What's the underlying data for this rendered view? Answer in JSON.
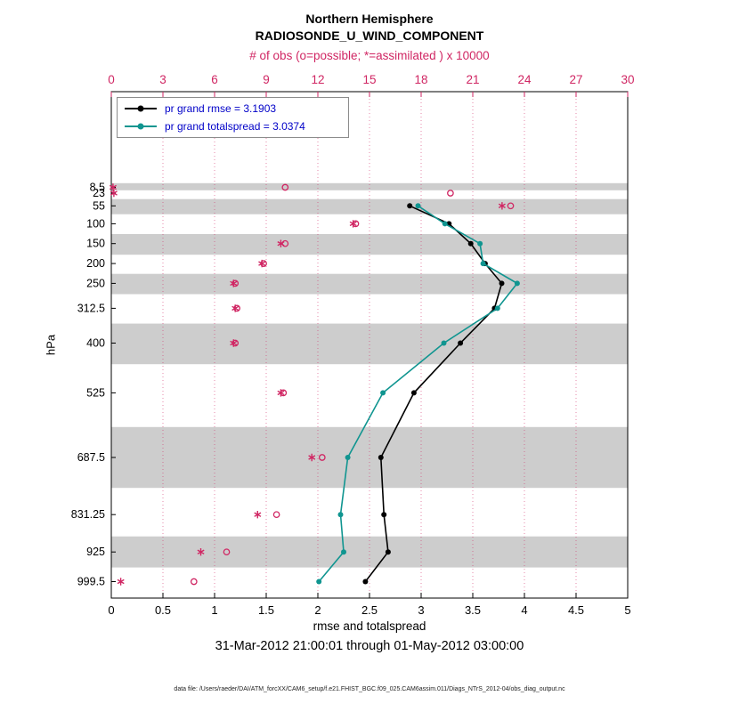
{
  "title": {
    "line1": "Northern Hemisphere",
    "line2": "RADIOSONDE_U_WIND_COMPONENT"
  },
  "top_axis": {
    "label": "# of obs (o=possible; *=assimilated ) x 10000"
  },
  "legend": {
    "text_color": "#0000c8",
    "items": [
      {
        "label": "pr grand rmse = 3.1903",
        "color": "#000000"
      },
      {
        "label": "pr grand totalspread = 3.0374",
        "color": "#109590"
      }
    ]
  },
  "y_axis": {
    "label": "hPa"
  },
  "x_axis": {
    "label": "rmse and totalspread"
  },
  "footer": {
    "date_range": "31-Mar-2012 21:00:01 through 01-May-2012 03:00:00",
    "data_file": "data file: /Users/raeder/DAI/ATM_forcXX/CAM6_setup/f.e21.FHIST_BGC.f09_025.CAM6assim.011/Diags_NTrS_2012-04/obs_diag_output.nc"
  },
  "chart_data": {
    "type": "line",
    "title": "Northern Hemisphere RADIOSONDE_U_WIND_COMPONENT",
    "xlabel": "rmse and totalspread",
    "x2label": "# of obs (o=possible; *=assimilated ) x 10000",
    "ylabel": "hPa",
    "xlim": [
      0,
      5
    ],
    "x2lim": [
      0,
      30
    ],
    "x_ticks": [
      0,
      0.5,
      1,
      1.5,
      2,
      2.5,
      3,
      3.5,
      4,
      4.5,
      5
    ],
    "x2_ticks": [
      0,
      3,
      6,
      9,
      12,
      15,
      18,
      21,
      24,
      27,
      30
    ],
    "y_levels_hpa": [
      8.5,
      23,
      55,
      100,
      150,
      200,
      250,
      312.5,
      400,
      525,
      687.5,
      831.25,
      925,
      999.5
    ],
    "y_scale": {
      "type": "linear-pressure-reversed",
      "p_top": -232,
      "p_bottom": 1041
    },
    "colors": {
      "obs": "#d02663",
      "rmse": "#000000",
      "totalspread": "#109590",
      "band": "#cdcdcd"
    },
    "series": [
      {
        "name": "rmse",
        "color": "#000000",
        "legend": "pr grand rmse = 3.1903",
        "mean": 3.1903,
        "levels": [
          55,
          100,
          150,
          200,
          250,
          312.5,
          400,
          525,
          687.5,
          831.25,
          925,
          999.5
        ],
        "values": [
          2.89,
          3.27,
          3.48,
          3.62,
          3.78,
          3.71,
          3.38,
          2.93,
          2.61,
          2.64,
          2.68,
          2.46
        ]
      },
      {
        "name": "totalspread",
        "color": "#109590",
        "legend": "pr grand totalspread = 3.0374",
        "mean": 3.0374,
        "levels": [
          55,
          100,
          150,
          200,
          250,
          312.5,
          400,
          525,
          687.5,
          831.25,
          925,
          999.5
        ],
        "values": [
          2.97,
          3.23,
          3.57,
          3.6,
          3.93,
          3.74,
          3.22,
          2.63,
          2.29,
          2.22,
          2.25,
          2.01
        ]
      }
    ],
    "obs_counts_x10000": {
      "possible_marker": "o",
      "assimilated_marker": "*",
      "levels": [
        8.5,
        23,
        55,
        100,
        150,
        200,
        250,
        312.5,
        400,
        525,
        687.5,
        831.25,
        925,
        999.5
      ],
      "possible": [
        10.1,
        19.7,
        23.2,
        14.2,
        10.1,
        8.85,
        7.2,
        7.3,
        7.2,
        10.0,
        12.25,
        9.6,
        6.7,
        4.8
      ],
      "assimilated": [
        0.1,
        0.15,
        22.7,
        14.05,
        9.85,
        8.75,
        7.1,
        7.2,
        7.1,
        9.85,
        11.65,
        8.5,
        5.2,
        0.55
      ]
    },
    "shaded_bands_hpa": [
      [
        -2,
        16
      ],
      [
        38,
        76
      ],
      [
        126,
        178
      ],
      [
        226,
        277
      ],
      [
        351,
        453
      ],
      [
        611,
        764
      ],
      [
        886,
        964
      ]
    ]
  }
}
